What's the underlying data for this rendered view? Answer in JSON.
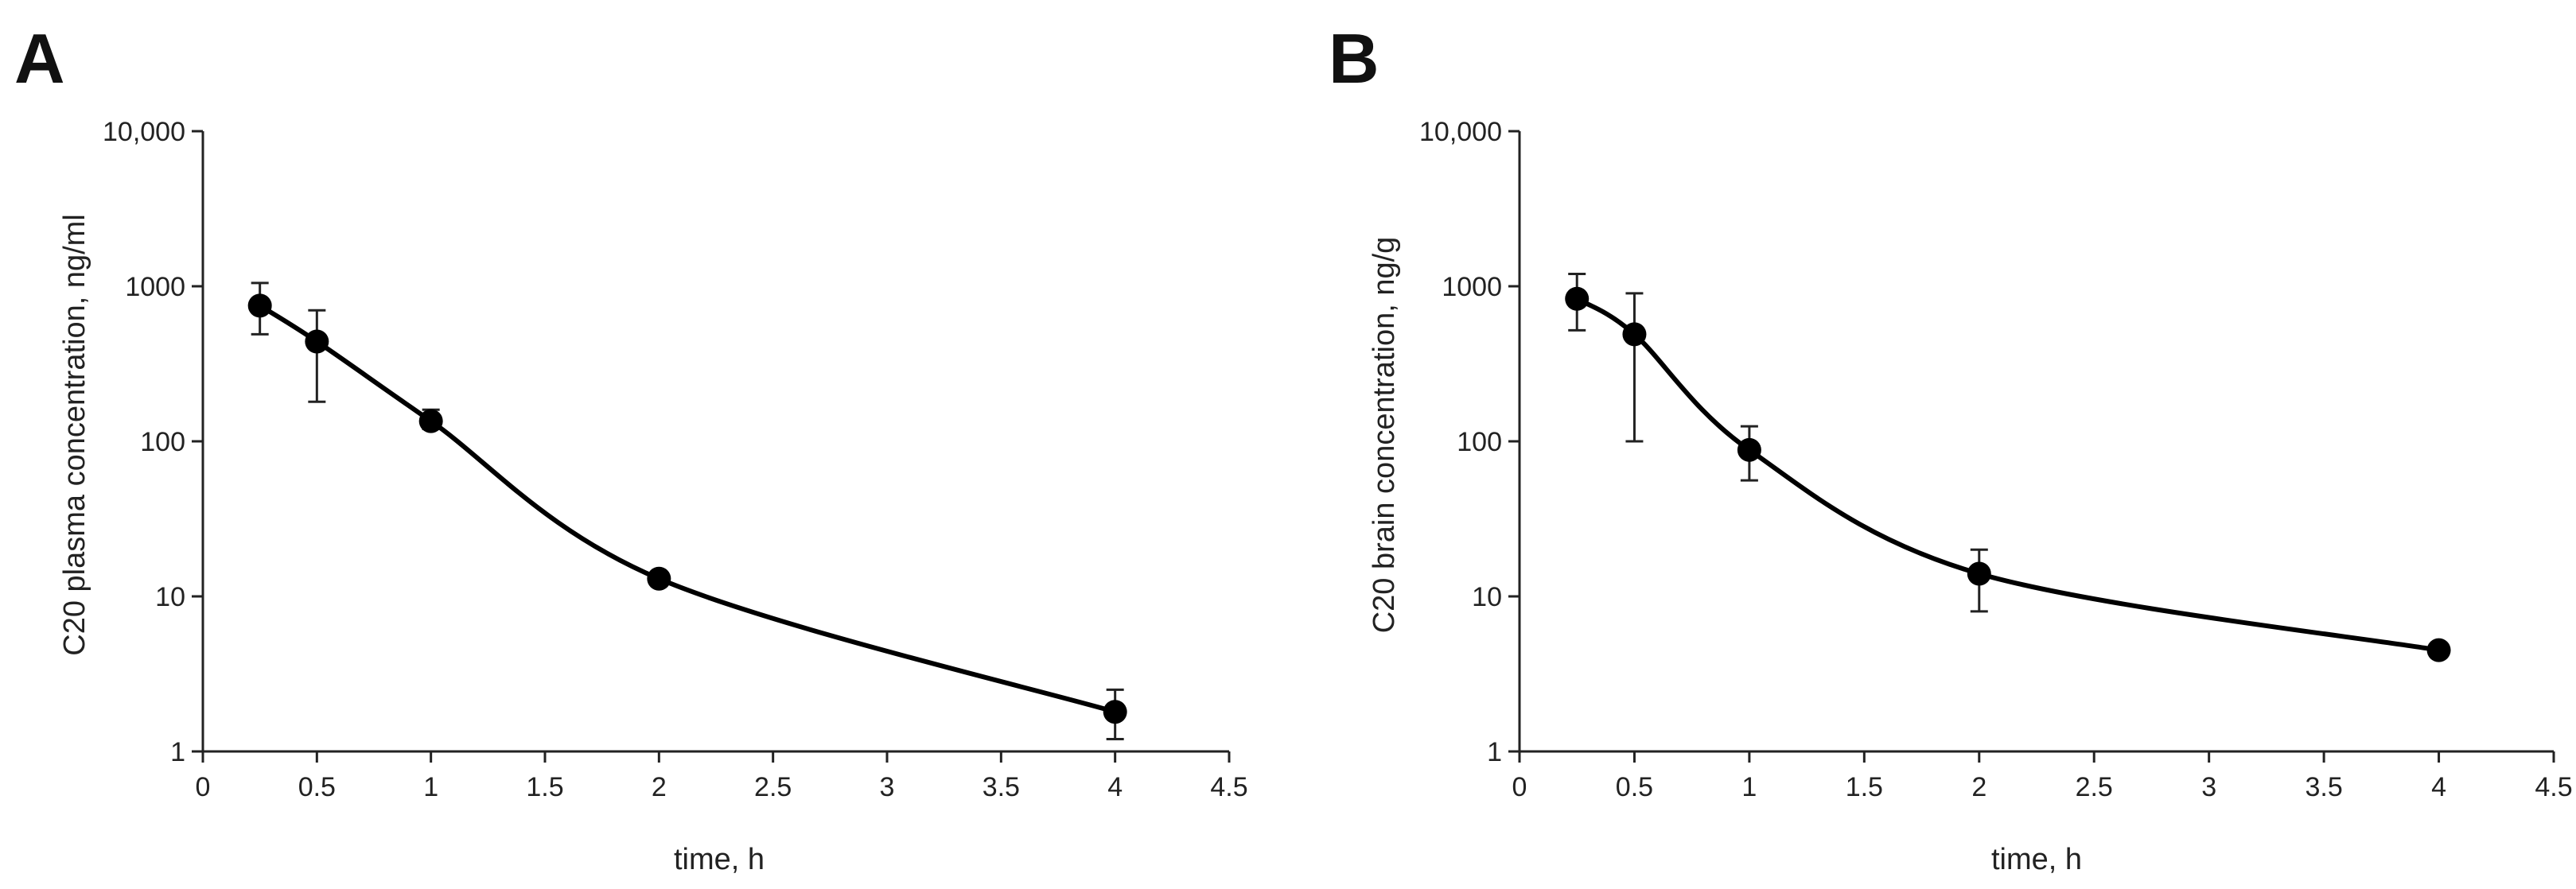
{
  "figure": {
    "panels": [
      "A",
      "B"
    ]
  },
  "chart_data": [
    {
      "panel": "A",
      "type": "line",
      "scale_y": "log",
      "title": "",
      "xlabel": "time, h",
      "ylabel": "C20 plasma concentration, ng/ml",
      "xlim": [
        0,
        4.5
      ],
      "ylim": [
        1,
        10000
      ],
      "xticks": [
        0,
        0.5,
        1,
        1.5,
        2,
        2.5,
        3,
        3.5,
        4,
        4.5
      ],
      "xtick_labels": [
        "0",
        "0.5",
        "1",
        "1.5",
        "2",
        "2.5",
        "3",
        "3.5",
        "4",
        "4.5"
      ],
      "yticks": [
        1,
        10,
        100,
        1000,
        10000
      ],
      "ytick_labels": [
        "1",
        "10",
        "100",
        "1000",
        "10,000"
      ],
      "grid": false,
      "legend": "none",
      "series": [
        {
          "name": "C20 plasma",
          "color": "#000000",
          "x": [
            0.25,
            0.5,
            1,
            2,
            4
          ],
          "y": [
            750,
            440,
            135,
            13,
            1.8
          ],
          "err_low": [
            490,
            180,
            120,
            12,
            1.2
          ],
          "err_high": [
            1050,
            700,
            160,
            14,
            2.5
          ]
        }
      ]
    },
    {
      "panel": "B",
      "type": "line",
      "scale_y": "log",
      "title": "",
      "xlabel": "time, h",
      "ylabel": "C20 brain concentration, ng/g",
      "xlim": [
        0,
        4.5
      ],
      "ylim": [
        1,
        10000
      ],
      "xticks": [
        0,
        0.5,
        1,
        1.5,
        2,
        2.5,
        3,
        3.5,
        4,
        4.5
      ],
      "xtick_labels": [
        "0",
        "0.5",
        "1",
        "1.5",
        "2",
        "2.5",
        "3",
        "3.5",
        "4",
        "4.5"
      ],
      "yticks": [
        1,
        10,
        100,
        1000,
        10000
      ],
      "ytick_labels": [
        "1",
        "10",
        "100",
        "1000",
        "10,000"
      ],
      "grid": false,
      "legend": "none",
      "series": [
        {
          "name": "C20 brain",
          "color": "#000000",
          "x": [
            0.25,
            0.5,
            1,
            2,
            4
          ],
          "y": [
            830,
            490,
            88,
            14,
            4.5
          ],
          "err_low": [
            520,
            100,
            56,
            8,
            4.3
          ],
          "err_high": [
            1200,
            900,
            125,
            20,
            4.7
          ]
        }
      ]
    }
  ]
}
